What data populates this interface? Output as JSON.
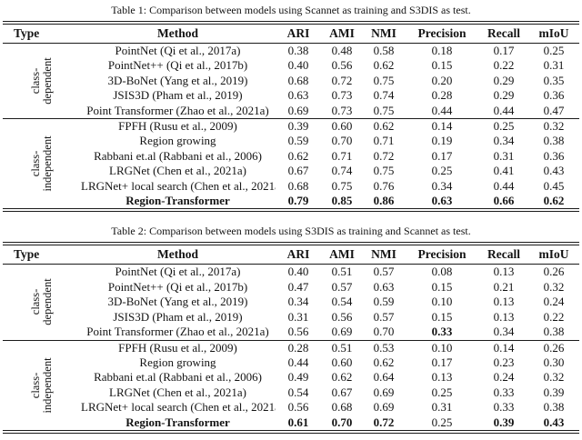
{
  "colors": {
    "text": "#141414",
    "rule": "#1a1a1a",
    "background": "#ffffff"
  },
  "tables": [
    {
      "caption": "Table 1: Comparison between models using Scannet as training and S3DIS as test.",
      "columns": [
        "Type",
        "Method",
        "ARI",
        "AMI",
        "NMI",
        "Precision",
        "Recall",
        "mIoU"
      ],
      "groups": [
        {
          "type_label": [
            "class-",
            "dependent"
          ],
          "rows": [
            {
              "method": "PointNet (Qi et al., 2017a)",
              "bold_method": false,
              "values": [
                "0.38",
                "0.48",
                "0.58",
                "0.18",
                "0.17",
                "0.25"
              ],
              "bold_values": [
                false,
                false,
                false,
                false,
                false,
                false
              ]
            },
            {
              "method": "PointNet++ (Qi et al., 2017b)",
              "bold_method": false,
              "values": [
                "0.40",
                "0.56",
                "0.62",
                "0.15",
                "0.22",
                "0.31"
              ],
              "bold_values": [
                false,
                false,
                false,
                false,
                false,
                false
              ]
            },
            {
              "method": "3D-BoNet (Yang et al., 2019)",
              "bold_method": false,
              "values": [
                "0.68",
                "0.72",
                "0.75",
                "0.20",
                "0.29",
                "0.35"
              ],
              "bold_values": [
                false,
                false,
                false,
                false,
                false,
                false
              ]
            },
            {
              "method": "JSIS3D (Pham et al., 2019)",
              "bold_method": false,
              "values": [
                "0.63",
                "0.73",
                "0.74",
                "0.28",
                "0.29",
                "0.36"
              ],
              "bold_values": [
                false,
                false,
                false,
                false,
                false,
                false
              ]
            },
            {
              "method": "Point Transformer (Zhao et al., 2021a)",
              "bold_method": false,
              "values": [
                "0.69",
                "0.73",
                "0.75",
                "0.44",
                "0.44",
                "0.47"
              ],
              "bold_values": [
                false,
                false,
                false,
                false,
                false,
                false
              ]
            }
          ]
        },
        {
          "type_label": [
            "class-",
            "independent"
          ],
          "rows": [
            {
              "method": "FPFH (Rusu et al., 2009)",
              "bold_method": false,
              "values": [
                "0.39",
                "0.60",
                "0.62",
                "0.14",
                "0.25",
                "0.32"
              ],
              "bold_values": [
                false,
                false,
                false,
                false,
                false,
                false
              ]
            },
            {
              "method": "Region growing",
              "bold_method": false,
              "values": [
                "0.59",
                "0.70",
                "0.71",
                "0.19",
                "0.34",
                "0.38"
              ],
              "bold_values": [
                false,
                false,
                false,
                false,
                false,
                false
              ]
            },
            {
              "method": "Rabbani et.al (Rabbani et al., 2006)",
              "bold_method": false,
              "values": [
                "0.62",
                "0.71",
                "0.72",
                "0.17",
                "0.31",
                "0.36"
              ],
              "bold_values": [
                false,
                false,
                false,
                false,
                false,
                false
              ]
            },
            {
              "method": "LRGNet (Chen et al., 2021a)",
              "bold_method": false,
              "values": [
                "0.67",
                "0.74",
                "0.75",
                "0.25",
                "0.41",
                "0.43"
              ],
              "bold_values": [
                false,
                false,
                false,
                false,
                false,
                false
              ]
            },
            {
              "method": "LRGNet+ local search (Chen et al., 2021a)",
              "bold_method": false,
              "values": [
                "0.68",
                "0.75",
                "0.76",
                "0.34",
                "0.44",
                "0.45"
              ],
              "bold_values": [
                false,
                false,
                false,
                false,
                false,
                false
              ]
            },
            {
              "method": "Region-Transformer",
              "bold_method": true,
              "values": [
                "0.79",
                "0.85",
                "0.86",
                "0.63",
                "0.66",
                "0.62"
              ],
              "bold_values": [
                true,
                true,
                true,
                true,
                true,
                true
              ]
            }
          ]
        }
      ]
    },
    {
      "caption": "Table 2: Comparison between models using S3DIS as training and Scannet as test.",
      "columns": [
        "Type",
        "Method",
        "ARI",
        "AMI",
        "NMI",
        "Precision",
        "Recall",
        "mIoU"
      ],
      "groups": [
        {
          "type_label": [
            "class-",
            "dependent"
          ],
          "rows": [
            {
              "method": "PointNet (Qi et al., 2017a)",
              "bold_method": false,
              "values": [
                "0.40",
                "0.51",
                "0.57",
                "0.08",
                "0.13",
                "0.26"
              ],
              "bold_values": [
                false,
                false,
                false,
                false,
                false,
                false
              ]
            },
            {
              "method": "PointNet++ (Qi et al., 2017b)",
              "bold_method": false,
              "values": [
                "0.47",
                "0.57",
                "0.63",
                "0.15",
                "0.21",
                "0.32"
              ],
              "bold_values": [
                false,
                false,
                false,
                false,
                false,
                false
              ]
            },
            {
              "method": "3D-BoNet (Yang et al., 2019)",
              "bold_method": false,
              "values": [
                "0.34",
                "0.54",
                "0.59",
                "0.10",
                "0.13",
                "0.24"
              ],
              "bold_values": [
                false,
                false,
                false,
                false,
                false,
                false
              ]
            },
            {
              "method": "JSIS3D (Pham et al., 2019)",
              "bold_method": false,
              "values": [
                "0.31",
                "0.56",
                "0.57",
                "0.15",
                "0.13",
                "0.22"
              ],
              "bold_values": [
                false,
                false,
                false,
                false,
                false,
                false
              ]
            },
            {
              "method": "Point Transformer (Zhao et al., 2021a)",
              "bold_method": false,
              "values": [
                "0.56",
                "0.69",
                "0.70",
                "0.33",
                "0.34",
                "0.38"
              ],
              "bold_values": [
                false,
                false,
                false,
                true,
                false,
                false
              ]
            }
          ]
        },
        {
          "type_label": [
            "class-",
            "independent"
          ],
          "rows": [
            {
              "method": "FPFH (Rusu et al., 2009)",
              "bold_method": false,
              "values": [
                "0.28",
                "0.51",
                "0.53",
                "0.10",
                "0.14",
                "0.26"
              ],
              "bold_values": [
                false,
                false,
                false,
                false,
                false,
                false
              ]
            },
            {
              "method": "Region growing",
              "bold_method": false,
              "values": [
                "0.44",
                "0.60",
                "0.62",
                "0.17",
                "0.23",
                "0.30"
              ],
              "bold_values": [
                false,
                false,
                false,
                false,
                false,
                false
              ]
            },
            {
              "method": "Rabbani et.al (Rabbani et al., 2006)",
              "bold_method": false,
              "values": [
                "0.49",
                "0.62",
                "0.64",
                "0.13",
                "0.24",
                "0.32"
              ],
              "bold_values": [
                false,
                false,
                false,
                false,
                false,
                false
              ]
            },
            {
              "method": "LRGNet (Chen et al., 2021a)",
              "bold_method": false,
              "values": [
                "0.54",
                "0.67",
                "0.69",
                "0.25",
                "0.33",
                "0.39"
              ],
              "bold_values": [
                false,
                false,
                false,
                false,
                false,
                false
              ]
            },
            {
              "method": "LRGNet+ local search (Chen et al., 2021a)",
              "bold_method": false,
              "values": [
                "0.56",
                "0.68",
                "0.69",
                "0.31",
                "0.33",
                "0.38"
              ],
              "bold_values": [
                false,
                false,
                false,
                false,
                false,
                false
              ]
            },
            {
              "method": "Region-Transformer",
              "bold_method": true,
              "values": [
                "0.61",
                "0.70",
                "0.72",
                "0.25",
                "0.39",
                "0.43"
              ],
              "bold_values": [
                true,
                true,
                true,
                false,
                true,
                true
              ]
            }
          ]
        }
      ]
    }
  ]
}
